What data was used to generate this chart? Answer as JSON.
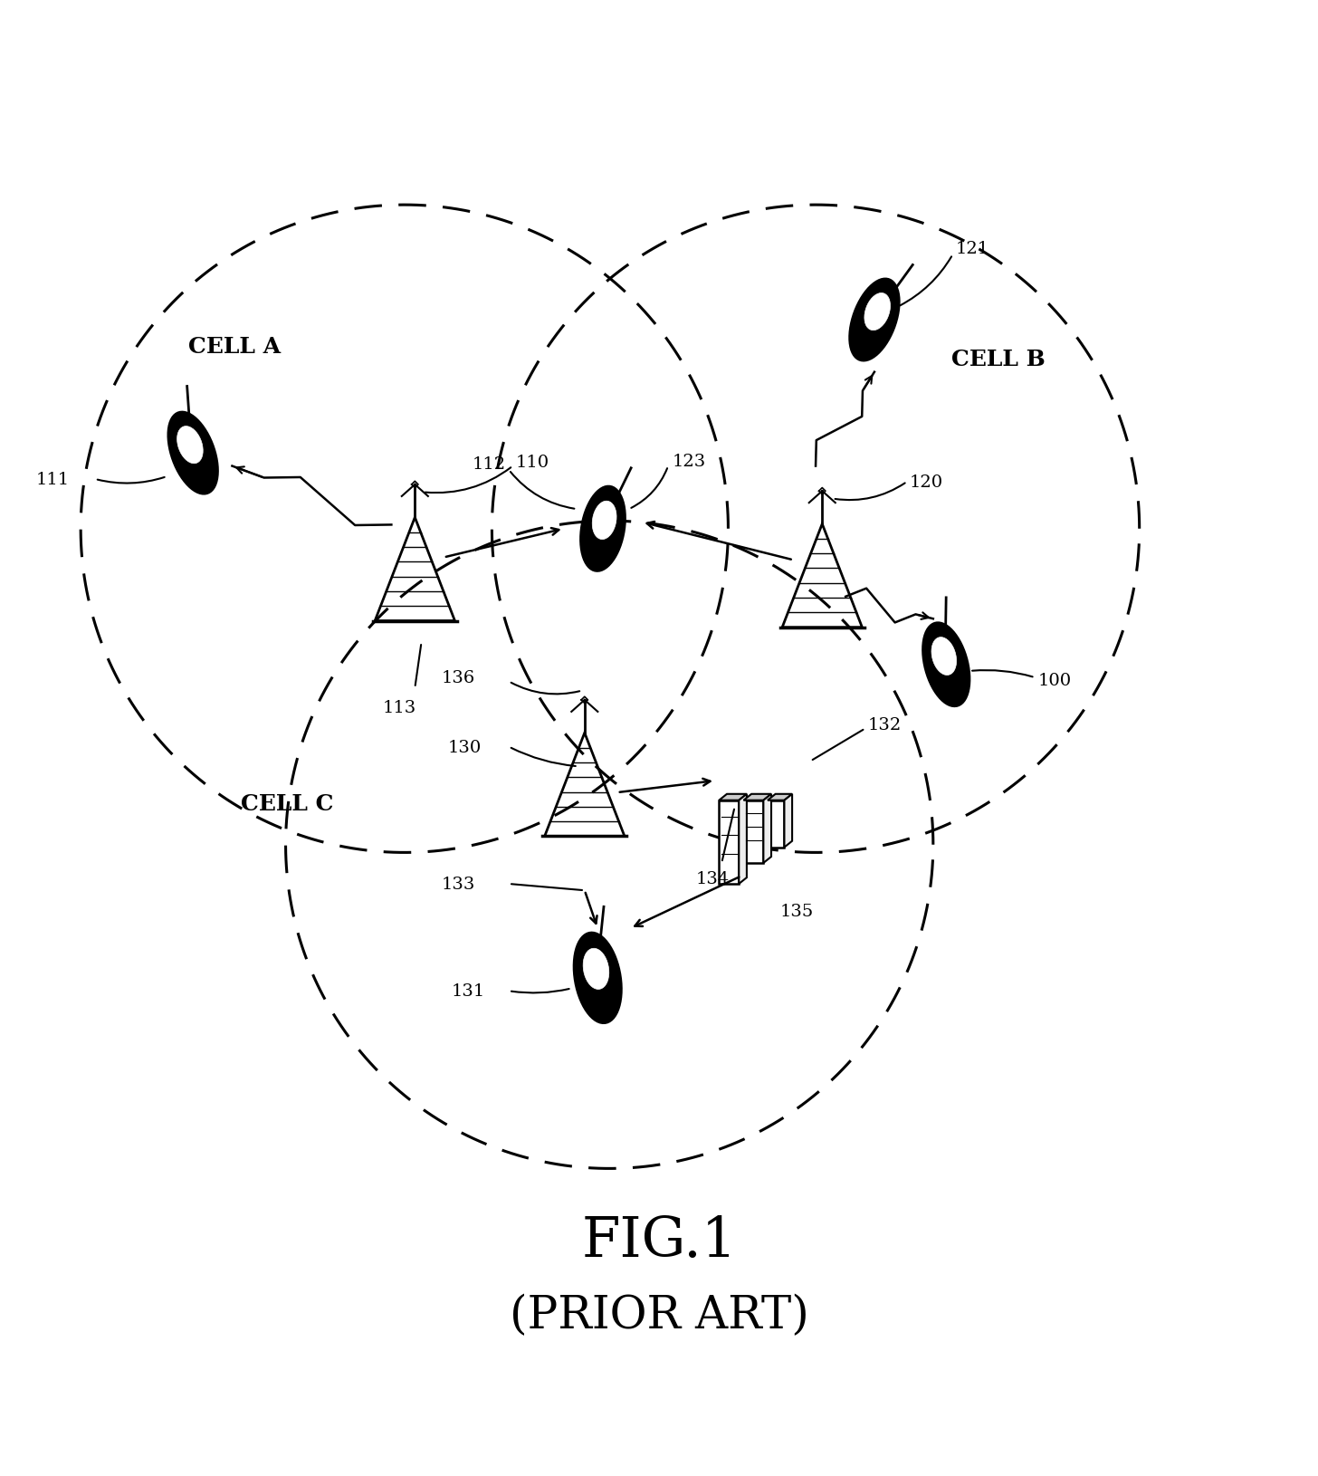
{
  "figure_width": 14.56,
  "figure_height": 16.31,
  "bg_color": "#ffffff",
  "title": "FIG.1",
  "subtitle": "(PRIOR ART)",
  "title_fontsize": 44,
  "subtitle_fontsize": 36,
  "cA": [
    0.305,
    0.66
  ],
  "cB": [
    0.62,
    0.66
  ],
  "cC": [
    0.462,
    0.418
  ],
  "R": 0.248,
  "cell_a_label": "CELL A",
  "cell_b_label": "CELL B",
  "cell_c_label": "CELL C",
  "label_fontsize": 18,
  "number_fontsize": 14
}
